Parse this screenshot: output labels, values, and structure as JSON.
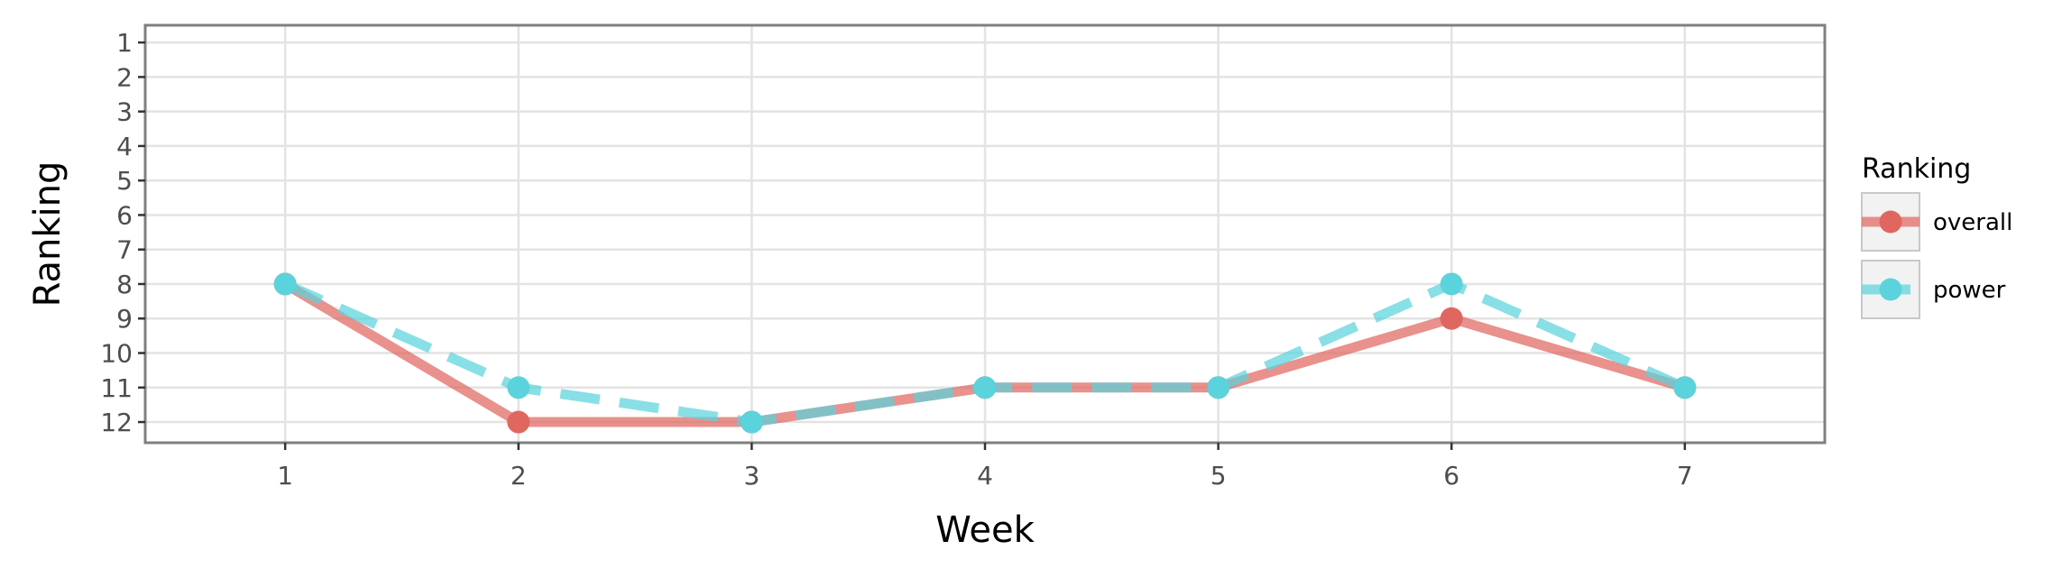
{
  "chart_data": {
    "type": "line",
    "xlabel": "Week",
    "ylabel": "Ranking",
    "x": [
      1,
      2,
      3,
      4,
      5,
      6,
      7
    ],
    "x_ticks": [
      "1",
      "2",
      "3",
      "4",
      "5",
      "6",
      "7"
    ],
    "y_ticks": [
      "1",
      "2",
      "3",
      "4",
      "5",
      "6",
      "7",
      "8",
      "9",
      "10",
      "11",
      "12"
    ],
    "xlim": [
      0.4,
      7.6
    ],
    "ylim": [
      12.6,
      0.5
    ],
    "y_reversed": true,
    "grid": true,
    "legend": {
      "title": "Ranking",
      "position": "right"
    },
    "series": [
      {
        "name": "overall",
        "values": [
          8,
          12,
          12,
          11,
          11,
          9,
          11
        ],
        "color": "#e06660",
        "line_style": "solid"
      },
      {
        "name": "power",
        "values": [
          8,
          11,
          12,
          11,
          11,
          8,
          11
        ],
        "color": "#5bd3dc",
        "line_style": "dashed"
      }
    ]
  }
}
